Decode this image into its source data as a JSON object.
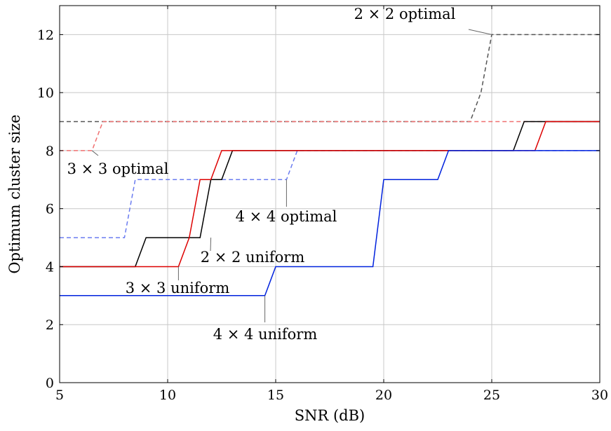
{
  "chart_data": {
    "type": "line",
    "title": "",
    "xlabel": "SNR (dB)",
    "ylabel": "Optimum cluster size",
    "xlim": [
      5,
      30
    ],
    "ylim": [
      0,
      13
    ],
    "xticks": [
      5,
      10,
      15,
      20,
      25,
      30
    ],
    "yticks": [
      0,
      2,
      4,
      6,
      8,
      10,
      12
    ],
    "grid": true,
    "legend": "none",
    "series": [
      {
        "name": "2 × 2 optimal",
        "color": "#555555",
        "dash": "dashed",
        "points": [
          [
            5,
            9
          ],
          [
            24,
            9
          ],
          [
            24.5,
            10
          ],
          [
            25,
            12
          ],
          [
            30,
            12
          ]
        ]
      },
      {
        "name": "3 × 3 optimal",
        "color": "#f07070",
        "dash": "dashed",
        "points": [
          [
            5,
            8
          ],
          [
            6.5,
            8
          ],
          [
            7,
            9
          ],
          [
            30,
            9
          ]
        ]
      },
      {
        "name": "4 × 4 optimal",
        "color": "#6b7cf0",
        "dash": "dashed",
        "points": [
          [
            5,
            5
          ],
          [
            8,
            5
          ],
          [
            8.5,
            7
          ],
          [
            15.5,
            7
          ],
          [
            16,
            8
          ],
          [
            30,
            8
          ]
        ]
      },
      {
        "name": "2 × 2 uniform",
        "color": "#000000",
        "dash": "solid",
        "points": [
          [
            5,
            4
          ],
          [
            8.5,
            4
          ],
          [
            9,
            5
          ],
          [
            11.5,
            5
          ],
          [
            12,
            7
          ],
          [
            12.5,
            7
          ],
          [
            13,
            8
          ],
          [
            26,
            8
          ],
          [
            26.5,
            9
          ],
          [
            30,
            9
          ]
        ]
      },
      {
        "name": "3 × 3 uniform",
        "color": "#dd0000",
        "dash": "solid",
        "points": [
          [
            5,
            4
          ],
          [
            10.5,
            4
          ],
          [
            11,
            5
          ],
          [
            11.5,
            7
          ],
          [
            12,
            7
          ],
          [
            12.5,
            8
          ],
          [
            27,
            8
          ],
          [
            27.5,
            9
          ],
          [
            30,
            9
          ]
        ]
      },
      {
        "name": "4 × 4 uniform",
        "color": "#0022dd",
        "dash": "solid",
        "points": [
          [
            5,
            3
          ],
          [
            14.5,
            3
          ],
          [
            15,
            4
          ],
          [
            19.5,
            4
          ],
          [
            20,
            7
          ],
          [
            22.5,
            7
          ],
          [
            23,
            8
          ],
          [
            30,
            8
          ]
        ]
      }
    ],
    "annotations": [
      {
        "text": "2 × 2 optimal",
        "series": "2 × 2 optimal",
        "at": [
          25,
          12
        ],
        "anchor": "above-left"
      },
      {
        "text": "3 × 3 optimal",
        "series": "3 × 3 optimal",
        "at": [
          6.5,
          8
        ],
        "anchor": "below"
      },
      {
        "text": "4 × 4 optimal",
        "series": "4 × 4 optimal",
        "at": [
          15.5,
          7
        ],
        "anchor": "below"
      },
      {
        "text": "2 × 2 uniform",
        "series": "2 × 2 uniform",
        "at": [
          12,
          5
        ],
        "anchor": "below-right"
      },
      {
        "text": "3 × 3 uniform",
        "series": "3 × 3 uniform",
        "at": [
          10.5,
          4
        ],
        "anchor": "below-left"
      },
      {
        "text": "4 × 4 uniform",
        "series": "4 × 4 uniform",
        "at": [
          14.5,
          3
        ],
        "anchor": "below"
      }
    ]
  }
}
